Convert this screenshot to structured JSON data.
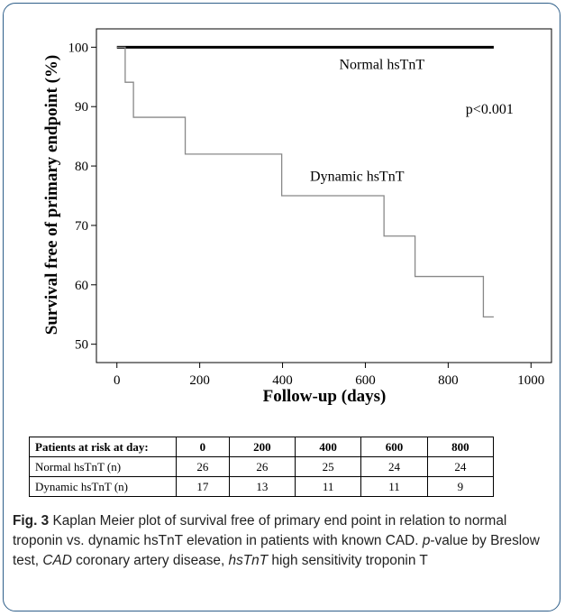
{
  "chart_data": {
    "type": "line",
    "title": "",
    "xlabel": "Follow-up (days)",
    "ylabel": "Survival free of primary endpoint (%)",
    "xlim": [
      0,
      1000
    ],
    "ylim": [
      50,
      100
    ],
    "x_ticks": [
      0,
      200,
      400,
      600,
      800,
      1000
    ],
    "y_ticks": [
      50,
      60,
      70,
      80,
      90,
      100
    ],
    "step": true,
    "series": [
      {
        "name": "Normal hsTnT",
        "color": "#000000",
        "points": [
          [
            0,
            100
          ],
          [
            910,
            100
          ]
        ]
      },
      {
        "name": "Dynamic hsTnT",
        "color": "#888888",
        "points": [
          [
            0,
            100
          ],
          [
            20,
            94.1
          ],
          [
            40,
            88.2
          ],
          [
            165,
            82.0
          ],
          [
            398,
            75.0
          ],
          [
            645,
            68.2
          ],
          [
            720,
            61.4
          ],
          [
            885,
            54.6
          ],
          [
            910,
            54.6
          ]
        ]
      }
    ],
    "annotations": [
      {
        "text": "Normal hsTnT",
        "x": 640,
        "y": 96.3
      },
      {
        "text": "p<0.001",
        "x": 900,
        "y": 88.8
      },
      {
        "text": "Dynamic hsTnT",
        "x": 580,
        "y": 77.5
      }
    ],
    "grid": false
  },
  "risk_table": {
    "header": [
      "Patients at risk at day:",
      "0",
      "200",
      "400",
      "600",
      "800"
    ],
    "rows": [
      {
        "label": "Normal hsTnT (n)",
        "values": [
          "26",
          "26",
          "25",
          "24",
          "24"
        ]
      },
      {
        "label": "Dynamic hsTnT (n)",
        "values": [
          "17",
          "13",
          "11",
          "11",
          "9"
        ]
      }
    ]
  },
  "caption": {
    "fig_label": "Fig. 3",
    "part1": " Kaplan Meier plot of survival free of primary end point in relation to normal troponin vs. dynamic hsTnT elevation in patients with known CAD. ",
    "p_italic": "p",
    "part2": "-value by Breslow test, ",
    "cad_italic": "CAD",
    "part3": " coronary artery disease, ",
    "hstnt_italic": "hsTnT",
    "part4": " high sensitivity troponin T"
  }
}
